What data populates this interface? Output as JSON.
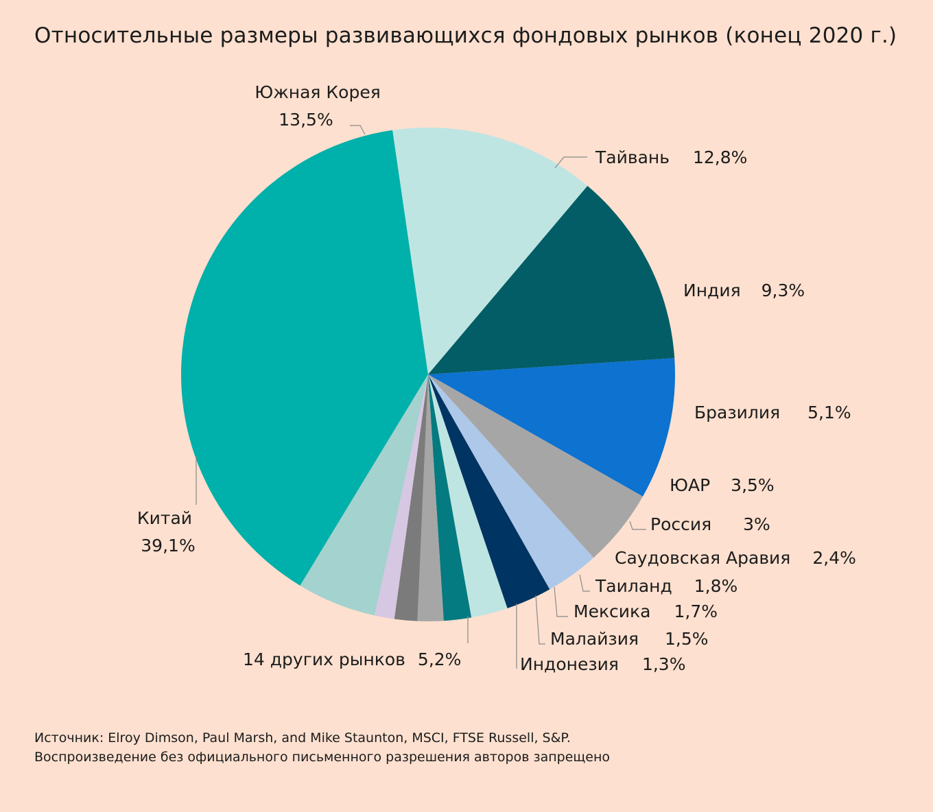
{
  "chart_data": {
    "type": "pie",
    "title": "Относительные размеры развивающихся фондовых рынков (конец 2020 г.)",
    "slices": [
      {
        "name": "Южная Корея",
        "value": 13.5,
        "label": "13,5%",
        "color": "#bfe5e3"
      },
      {
        "name": "Тайвань",
        "value": 12.8,
        "label": "12,8%",
        "color": "#025d66"
      },
      {
        "name": "Индия",
        "value": 9.3,
        "label": "9,3%",
        "color": "#0d72d0"
      },
      {
        "name": "Бразилия",
        "value": 5.1,
        "label": "5,1%",
        "color": "#a6a6a6"
      },
      {
        "name": "ЮАР",
        "value": 3.5,
        "label": "3,5%",
        "color": "#aec8ea"
      },
      {
        "name": "Россия",
        "value": 3.0,
        "label": "3%",
        "color": "#003462"
      },
      {
        "name": "Саудовская Аравия",
        "value": 2.4,
        "label": "2,4%",
        "color": "#bfe5e3"
      },
      {
        "name": "Таиланд",
        "value": 1.8,
        "label": "1,8%",
        "color": "#037b80"
      },
      {
        "name": "Мексика",
        "value": 1.7,
        "label": "1,7%",
        "color": "#a6a6a6"
      },
      {
        "name": "Малайзия",
        "value": 1.5,
        "label": "1,5%",
        "color": "#7b7b7b"
      },
      {
        "name": "Индонезия",
        "value": 1.3,
        "label": "1,3%",
        "color": "#d6c7e3"
      },
      {
        "name": "14 других рынков",
        "value": 5.2,
        "label": "5,2%",
        "color": "#a3d2cf"
      },
      {
        "name": "Китай",
        "value": 39.1,
        "label": "39,1%",
        "color": "#00b0aa"
      }
    ]
  },
  "footer": {
    "source": "Источник: Elroy Dimson, Paul Marsh, and Mike Staunton, MSCI, FTSE Russell, S&P.",
    "note": "Воспроизведение без официального письменного разрешения авторов запрещено"
  }
}
